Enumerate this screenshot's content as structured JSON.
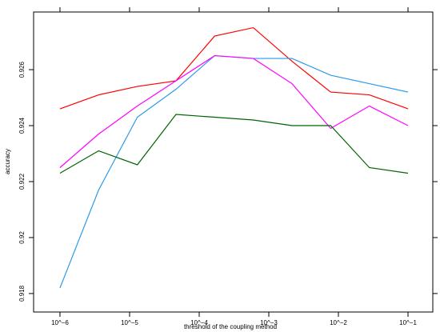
{
  "chart_data": {
    "type": "line",
    "x_label": "threshold of the coupling method",
    "y_label": "accuracy",
    "x": [
      1e-06,
      3.594e-06,
      1.292e-05,
      4.642e-05,
      0.0001668,
      0.0005995,
      0.002154,
      0.007743,
      0.02783,
      0.1
    ],
    "series": [
      {
        "color": "#ff0000",
        "values": [
          0.9246,
          0.9251,
          0.9254,
          0.9256,
          0.9272,
          0.9275,
          0.9263,
          0.9252,
          0.9251,
          0.9246
        ]
      },
      {
        "color": "#2b9ae8",
        "values": [
          0.9182,
          0.9217,
          0.9243,
          0.9253,
          0.9265,
          0.9264,
          0.9264,
          0.9258,
          0.9255,
          0.9252
        ]
      },
      {
        "color": "#ff00ff",
        "values": [
          0.9225,
          0.9237,
          0.9247,
          0.9256,
          0.9265,
          0.9264,
          0.9255,
          0.9239,
          0.9247,
          0.924
        ]
      },
      {
        "color": "#006400",
        "values": [
          0.9223,
          0.9231,
          0.9226,
          0.9244,
          0.9243,
          0.9242,
          0.924,
          0.924,
          0.9225,
          0.9223
        ]
      }
    ],
    "xscale": "log",
    "xlim": [
      4.18e-07,
      0.227
    ],
    "xticks": [
      {
        "value": 1e-06,
        "label": "10^−6"
      },
      {
        "value": 1e-05,
        "label": "10^−5"
      },
      {
        "value": 0.0001,
        "label": "10^−4"
      },
      {
        "value": 0.001,
        "label": "10^−3"
      },
      {
        "value": 0.01,
        "label": "10^−2"
      },
      {
        "value": 0.1,
        "label": "10^−1"
      }
    ],
    "ylim": [
      0.91734,
      0.92806
    ],
    "yticks": [
      0.918,
      0.92,
      0.922,
      0.924,
      0.926
    ]
  }
}
